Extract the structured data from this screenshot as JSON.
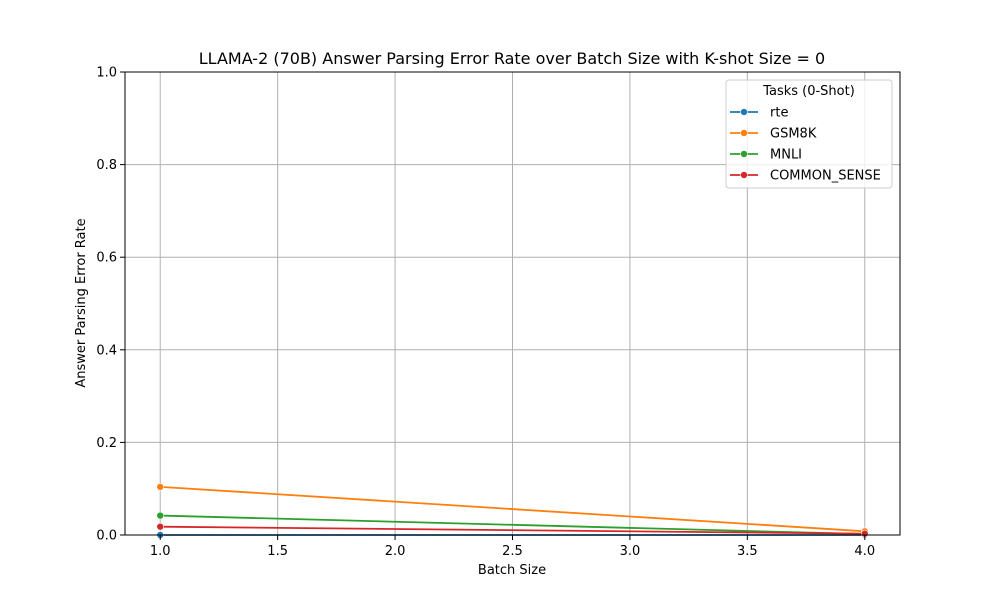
{
  "chart_data": {
    "type": "line",
    "title": "LLAMA-2 (70B) Answer Parsing Error Rate over Batch Size with K-shot Size = 0",
    "xlabel": "Batch Size",
    "ylabel": "Answer Parsing Error Rate",
    "xlim": [
      0.85,
      4.15
    ],
    "ylim": [
      0,
      1.0
    ],
    "xticks": [
      1.0,
      1.5,
      2.0,
      2.5,
      3.0,
      3.5,
      4.0
    ],
    "xtick_labels": [
      "1.0",
      "1.5",
      "2.0",
      "2.5",
      "3.0",
      "3.5",
      "4.0"
    ],
    "yticks": [
      0,
      0.2,
      0.4,
      0.6,
      0.8,
      1.0
    ],
    "ytick_labels": [
      "0.0",
      "0.2",
      "0.4",
      "0.6",
      "0.8",
      "1.0"
    ],
    "grid": true,
    "legend": {
      "title": "Tasks (0-Shot)",
      "placement": "top-right"
    },
    "series": [
      {
        "name": "rte",
        "color": "#1f77b4",
        "x": [
          1,
          4
        ],
        "y": [
          0.0,
          0.0
        ]
      },
      {
        "name": "GSM8K",
        "color": "#ff7f0e",
        "x": [
          1,
          4
        ],
        "y": [
          0.104,
          0.008
        ]
      },
      {
        "name": "MNLI",
        "color": "#2ca02c",
        "x": [
          1,
          4
        ],
        "y": [
          0.042,
          0.002
        ]
      },
      {
        "name": "COMMON_SENSE",
        "color": "#d62728",
        "x": [
          1,
          4
        ],
        "y": [
          0.018,
          0.003
        ]
      }
    ]
  }
}
